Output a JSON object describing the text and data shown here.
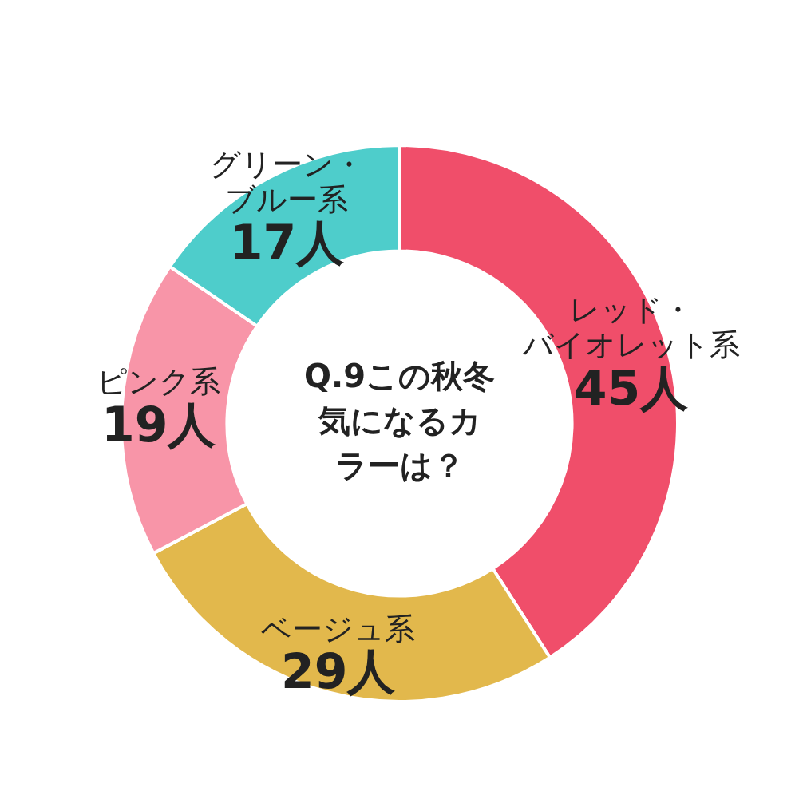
{
  "chart_data": {
    "type": "donut",
    "title": "Q.9この秋冬気になるカラーは？",
    "categories": [
      "レッド・バイオレット系",
      "ベージュ系",
      "ピンク系",
      "グリーン・ブルー系"
    ],
    "values": [
      45,
      29,
      19,
      17
    ],
    "value_labels": [
      "45人",
      "29人",
      "19人",
      "17人"
    ],
    "colors": [
      "#f04e6a",
      "#e2b84c",
      "#f895a8",
      "#4ecdcb"
    ],
    "legend": false
  }
}
